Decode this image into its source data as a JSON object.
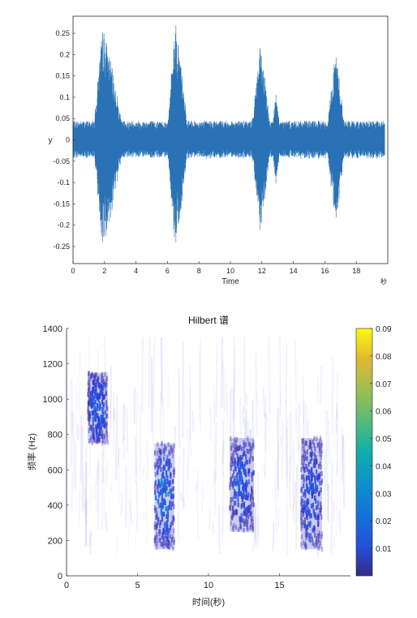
{
  "chart_data": [
    {
      "type": "line",
      "title": "",
      "xlabel": "Time",
      "xunit": "秒",
      "ylabel": "y",
      "xlim": [
        0,
        20
      ],
      "ylim": [
        -0.29,
        0.29
      ],
      "xticks": [
        "0",
        "2",
        "4",
        "6",
        "8",
        "10",
        "12",
        "14",
        "16",
        "18"
      ],
      "yticks": [
        "0.25",
        "0.2",
        "0.15",
        "0.1",
        "0.05",
        "0",
        "-0.05",
        "-0.1",
        "-0.15",
        "-0.2",
        "-0.25"
      ],
      "color": "#2a72b5",
      "noise_floor": 0.045,
      "bursts": [
        {
          "start": 1.3,
          "peak": 1.9,
          "end": 3.2,
          "amplitude": 0.27
        },
        {
          "start": 6.0,
          "peak": 6.5,
          "end": 7.3,
          "amplitude": 0.285
        },
        {
          "start": 11.3,
          "peak": 11.9,
          "end": 12.6,
          "amplitude": 0.22
        },
        {
          "start": 12.6,
          "peak": 12.9,
          "end": 13.2,
          "amplitude": 0.11
        },
        {
          "start": 16.1,
          "peak": 16.7,
          "end": 17.3,
          "amplitude": 0.21
        }
      ]
    },
    {
      "type": "heatmap",
      "title": "Hilbert 谱",
      "xlabel": "时间(秒)",
      "ylabel": "频率 (Hz)",
      "xlim": [
        0,
        20
      ],
      "ylim": [
        0,
        1400
      ],
      "xticks": [
        "0",
        "5",
        "10",
        "15"
      ],
      "yticks": [
        "1400",
        "1200",
        "1000",
        "800",
        "600",
        "400",
        "200",
        "0"
      ],
      "colorbar": {
        "range": [
          0,
          0.09
        ],
        "ticks": [
          "0.09",
          "0.08",
          "0.07",
          "0.06",
          "0.05",
          "0.04",
          "0.03",
          "0.02",
          "0.01"
        ],
        "colormap": "parula"
      },
      "blobs": [
        {
          "t_start": 1.5,
          "t_end": 2.9,
          "f_low": 750,
          "f_high": 1150,
          "max_level": 0.04
        },
        {
          "t_start": 6.2,
          "t_end": 7.6,
          "f_low": 150,
          "f_high": 750,
          "max_level": 0.05
        },
        {
          "t_start": 11.5,
          "t_end": 13.2,
          "f_low": 250,
          "f_high": 780,
          "max_level": 0.035
        },
        {
          "t_start": 16.5,
          "t_end": 18.0,
          "f_low": 150,
          "f_high": 780,
          "max_level": 0.035
        }
      ]
    }
  ]
}
